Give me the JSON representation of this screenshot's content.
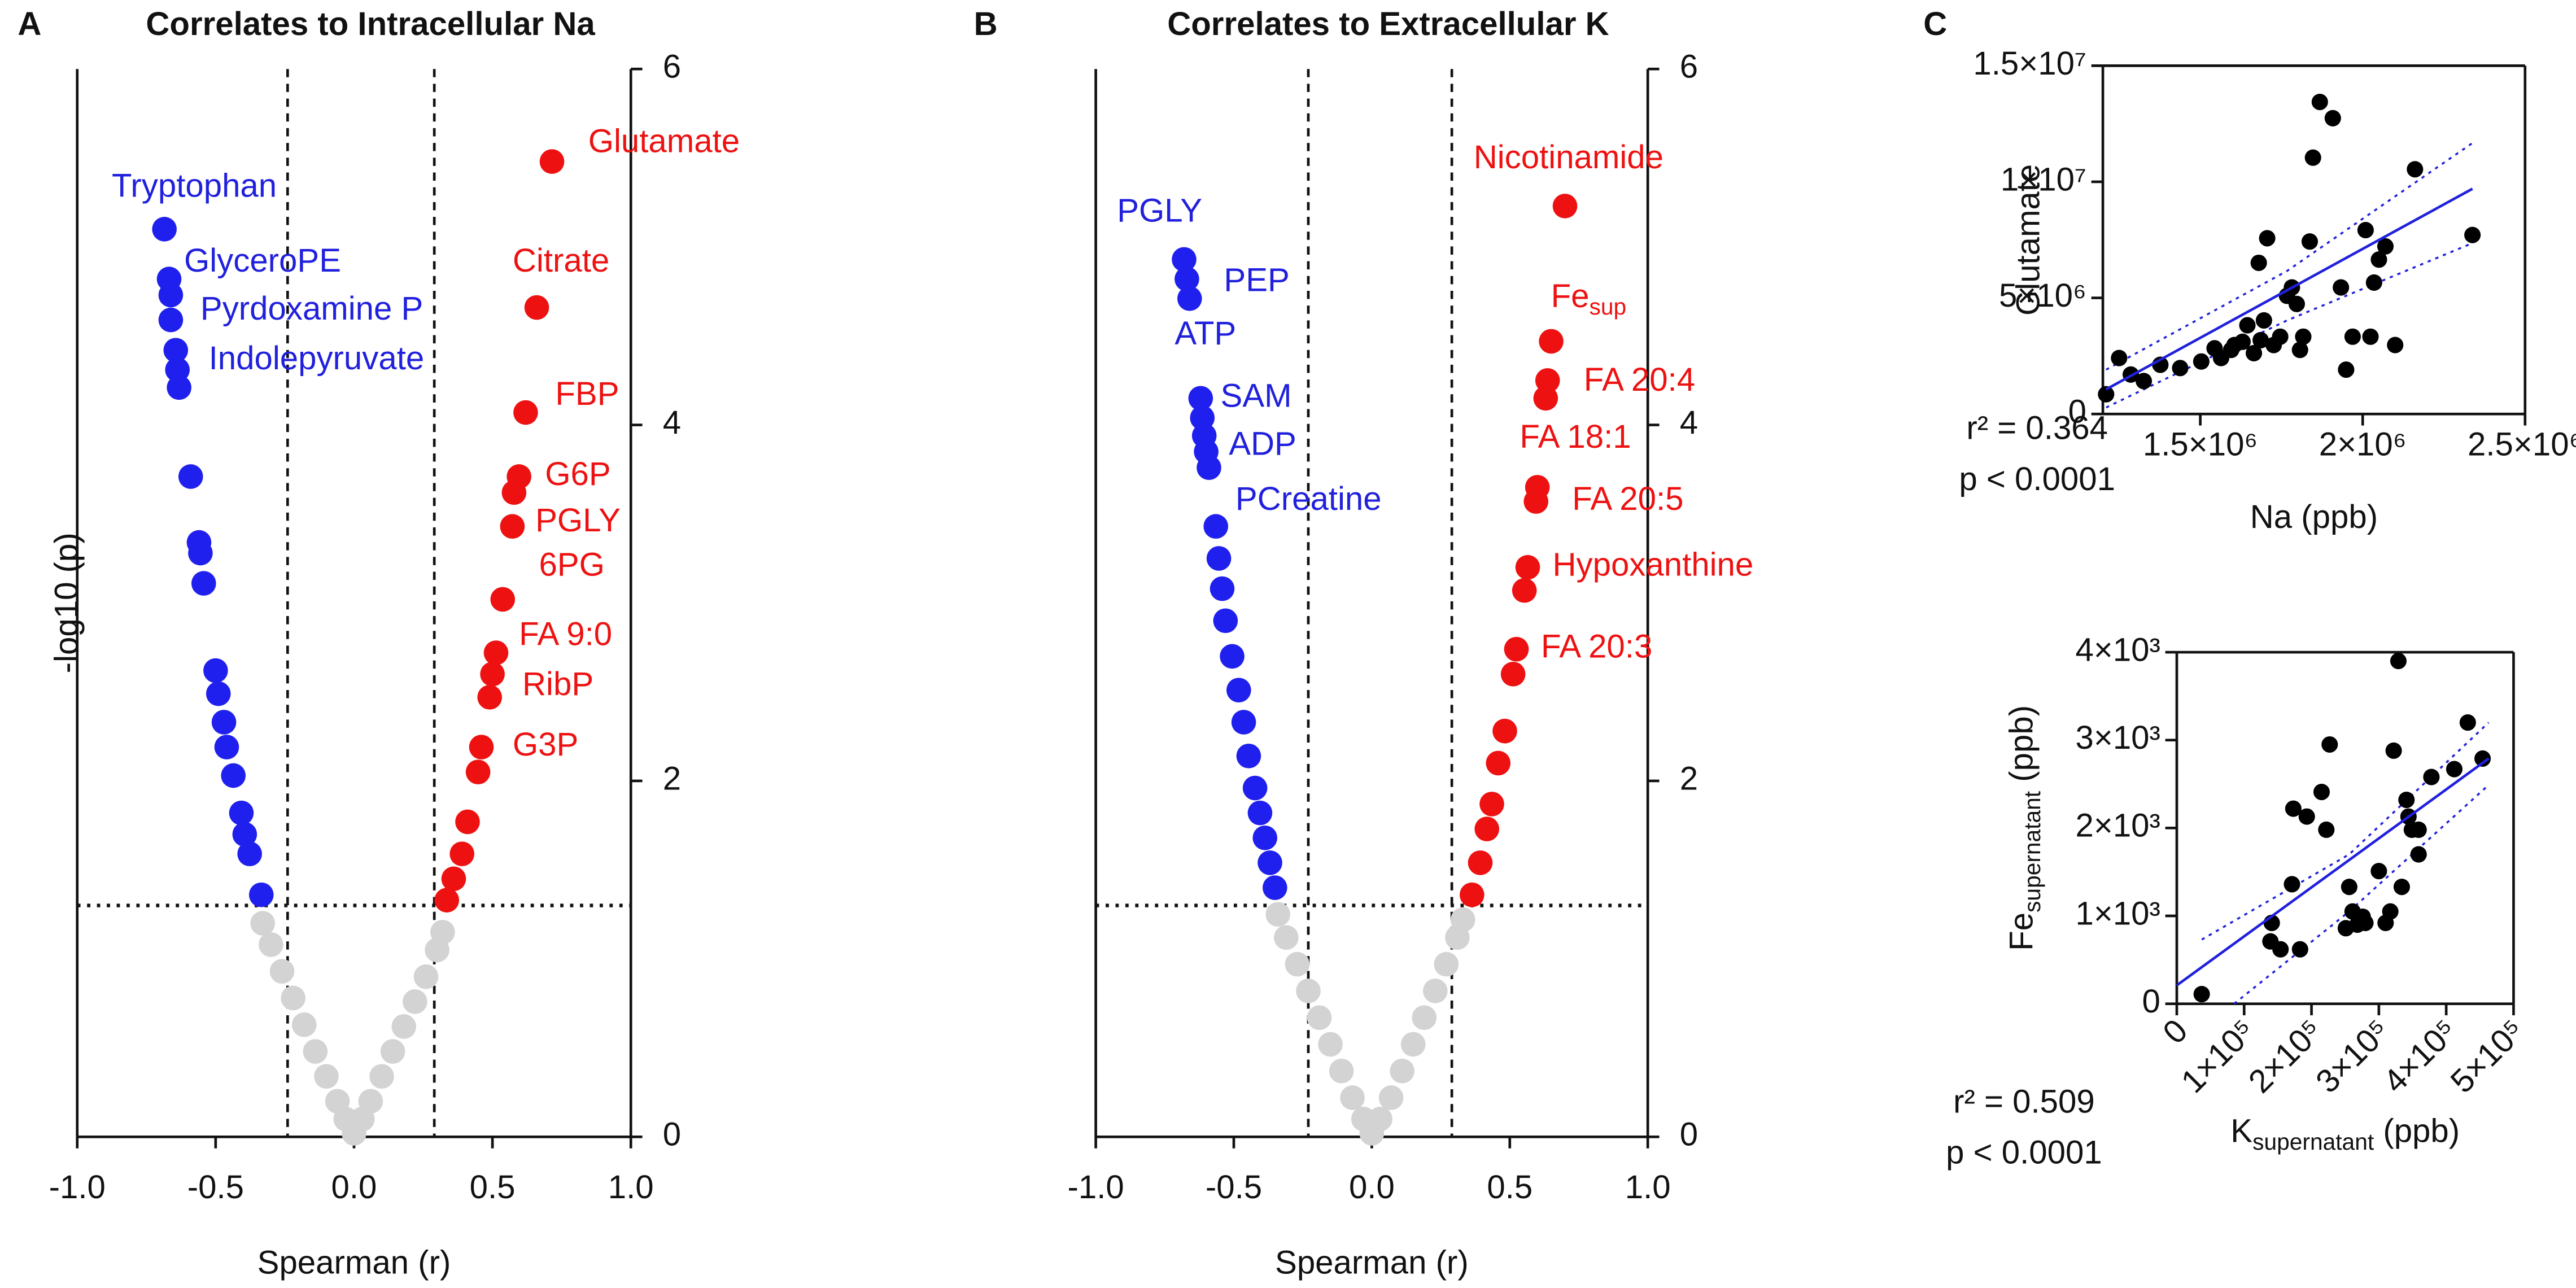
{
  "chart_data": [
    {
      "type": "scatter",
      "panel": "A",
      "title": "Correlates to Intracellular Na",
      "x_label": "Spearman (r)",
      "y_label": "-log10 (p)",
      "xlim": [
        -1,
        1
      ],
      "ylim": [
        0,
        6
      ],
      "xticks": [
        {
          "value": -1,
          "label": "-1.0"
        },
        -0.5,
        {
          "value": 0,
          "label": "0.0"
        },
        0.5,
        {
          "value": 1,
          "label": "1.0"
        }
      ],
      "yticks": [
        0,
        2,
        4,
        6
      ],
      "y_axis_side": "right",
      "frame": "open",
      "thresholds": {
        "x": [
          -0.24,
          0.29
        ],
        "y": [
          1.3
        ]
      },
      "series": [
        {
          "color": "#d3d3d3",
          "x": [
            -0.33,
            -0.3,
            -0.26,
            -0.22,
            -0.18,
            -0.14,
            -0.1,
            -0.06,
            -0.03,
            0,
            0.03,
            0.06,
            0.1,
            0.14,
            0.18,
            0.22,
            0.26,
            0.3,
            0.32
          ],
          "values": [
            1.2,
            1.08,
            0.93,
            0.78,
            0.63,
            0.48,
            0.34,
            0.2,
            0.1,
            0.02,
            0.1,
            0.2,
            0.34,
            0.48,
            0.62,
            0.76,
            0.9,
            1.05,
            1.15
          ]
        },
        {
          "color": "#2020ee",
          "x": [
            -0.685,
            -0.668,
            -0.662,
            -0.662,
            -0.644,
            -0.638,
            -0.632,
            -0.59,
            -0.56,
            -0.555,
            -0.543,
            -0.5,
            -0.49,
            -0.47,
            -0.46,
            -0.436,
            -0.407,
            -0.395,
            -0.377,
            -0.335
          ],
          "values": [
            5.1,
            4.82,
            4.73,
            4.59,
            4.42,
            4.31,
            4.21,
            3.71,
            3.34,
            3.28,
            3.11,
            2.62,
            2.49,
            2.33,
            2.19,
            2.03,
            1.82,
            1.7,
            1.59,
            1.36
          ]
        },
        {
          "color": "#ee1111",
          "x": [
            0.715,
            0.66,
            0.62,
            0.596,
            0.578,
            0.572,
            0.537,
            0.513,
            0.5,
            0.49,
            0.46,
            0.448,
            0.41,
            0.39,
            0.36,
            0.335
          ],
          "values": [
            5.48,
            4.66,
            4.07,
            3.71,
            3.62,
            3.43,
            3.02,
            2.72,
            2.6,
            2.47,
            2.19,
            2.05,
            1.77,
            1.59,
            1.45,
            1.33
          ]
        }
      ],
      "annotations": [
        {
          "text": "Tryptophan",
          "x": -0.875,
          "y": 5.33,
          "color": "#2020dd"
        },
        {
          "text": "GlyceroPE",
          "x": -0.614,
          "y": 4.91,
          "color": "#2020dd"
        },
        {
          "text": "Pyrdoxamine P",
          "x": -0.555,
          "y": 4.64,
          "color": "#2020dd"
        },
        {
          "text": "Indolepyruvate",
          "x": -0.525,
          "y": 4.36,
          "color": "#2020dd"
        },
        {
          "text": "Glutamate",
          "x": 0.846,
          "y": 5.58,
          "color": "#ee1111"
        },
        {
          "text": "Citrate",
          "x": 0.573,
          "y": 4.91,
          "color": "#ee1111"
        },
        {
          "text": "FBP",
          "x": 0.727,
          "y": 4.16,
          "color": "#ee1111"
        },
        {
          "text": "G6P",
          "x": 0.69,
          "y": 3.71,
          "color": "#ee1111"
        },
        {
          "text": "PGLY",
          "x": 0.655,
          "y": 3.45,
          "color": "#ee1111"
        },
        {
          "text": "6PG",
          "x": 0.668,
          "y": 3.2,
          "color": "#ee1111"
        },
        {
          "text": "FA 9:0",
          "x": 0.596,
          "y": 2.81,
          "color": "#ee1111"
        },
        {
          "text": "RibP",
          "x": 0.608,
          "y": 2.53,
          "color": "#ee1111"
        },
        {
          "text": "G3P",
          "x": 0.573,
          "y": 2.19,
          "color": "#ee1111"
        }
      ]
    },
    {
      "type": "scatter",
      "panel": "B",
      "title": "Correlates to Extracellular K",
      "x_label": "Spearman (r)",
      "y_label": "-log10 (p)",
      "xlim": [
        -1,
        1
      ],
      "ylim": [
        0,
        6
      ],
      "xticks": [
        {
          "value": -1,
          "label": "-1.0"
        },
        -0.5,
        {
          "value": 0,
          "label": "0.0"
        },
        0.5,
        {
          "value": 1,
          "label": "1.0"
        }
      ],
      "yticks": [
        0,
        2,
        4,
        6
      ],
      "y_axis_side": "right",
      "frame": "open",
      "thresholds": {
        "x": [
          -0.23,
          0.29
        ],
        "y": [
          1.3
        ]
      },
      "series": [
        {
          "color": "#d3d3d3",
          "x": [
            -0.34,
            -0.31,
            -0.27,
            -0.23,
            -0.19,
            -0.15,
            -0.11,
            -0.07,
            -0.03,
            0,
            0.03,
            0.07,
            0.11,
            0.15,
            0.19,
            0.23,
            0.27,
            0.31,
            0.33
          ],
          "values": [
            1.25,
            1.12,
            0.97,
            0.82,
            0.67,
            0.52,
            0.37,
            0.22,
            0.1,
            0.02,
            0.1,
            0.22,
            0.37,
            0.52,
            0.67,
            0.82,
            0.97,
            1.12,
            1.22
          ]
        },
        {
          "color": "#2020ee",
          "x": [
            -0.68,
            -0.67,
            -0.66,
            -0.62,
            -0.614,
            -0.607,
            -0.6,
            -0.59,
            -0.565,
            -0.554,
            -0.542,
            -0.53,
            -0.506,
            -0.482,
            -0.464,
            -0.446,
            -0.423,
            -0.405,
            -0.387,
            -0.369,
            -0.351
          ],
          "values": [
            4.93,
            4.82,
            4.71,
            4.15,
            4.04,
            3.94,
            3.85,
            3.76,
            3.43,
            3.25,
            3.08,
            2.9,
            2.7,
            2.51,
            2.33,
            2.14,
            1.96,
            1.82,
            1.68,
            1.54,
            1.4
          ]
        },
        {
          "color": "#ee1111",
          "x": [
            0.7,
            0.65,
            0.637,
            0.63,
            0.6,
            0.595,
            0.565,
            0.553,
            0.524,
            0.512,
            0.482,
            0.458,
            0.435,
            0.417,
            0.393,
            0.363
          ],
          "values": [
            5.23,
            4.47,
            4.25,
            4.15,
            3.65,
            3.57,
            3.2,
            3.07,
            2.74,
            2.6,
            2.28,
            2.1,
            1.87,
            1.73,
            1.54,
            1.36
          ]
        }
      ],
      "annotations": [
        {
          "text": "PGLY",
          "x": -0.923,
          "y": 5.19,
          "color": "#2020dd"
        },
        {
          "text": "PEP",
          "x": -0.536,
          "y": 4.8,
          "color": "#2020dd"
        },
        {
          "text": "ATP",
          "x": -0.714,
          "y": 4.5,
          "color": "#2020dd"
        },
        {
          "text": "SAM",
          "x": -0.548,
          "y": 4.15,
          "color": "#2020dd"
        },
        {
          "text": "ADP",
          "x": -0.518,
          "y": 3.88,
          "color": "#2020dd"
        },
        {
          "text": "PCreatine",
          "x": -0.494,
          "y": 3.57,
          "color": "#2020dd"
        },
        {
          "text": "Nicotinamide",
          "x": 0.369,
          "y": 5.49,
          "color": "#ee1111"
        },
        {
          "text": "Fe",
          "sub": "sup",
          "x": 0.649,
          "y": 4.71,
          "color": "#ee1111"
        },
        {
          "text": "FA 20:4",
          "x": 0.768,
          "y": 4.24,
          "color": "#ee1111"
        },
        {
          "text": "FA 18:1",
          "x": 0.536,
          "y": 3.92,
          "color": "#ee1111"
        },
        {
          "text": "FA 20:5",
          "x": 0.726,
          "y": 3.57,
          "color": "#ee1111"
        },
        {
          "text": "Hypoxanthine",
          "x": 0.655,
          "y": 3.2,
          "color": "#ee1111"
        },
        {
          "text": "FA 20:3",
          "x": 0.613,
          "y": 2.74,
          "color": "#ee1111"
        }
      ]
    },
    {
      "type": "scatter",
      "panel": "C",
      "x_label": "Na (ppb)",
      "y_label": "Glutamate",
      "frame": "box",
      "xlim": [
        1200000,
        2500000
      ],
      "ylim": [
        0,
        15000000
      ],
      "xticks": [
        {
          "value": 1500000,
          "label": "1.5×10⁶"
        },
        {
          "value": 2000000,
          "label": "2×10⁶"
        },
        {
          "value": 2500000,
          "label": "2.5×10⁶"
        }
      ],
      "yticks": [
        0,
        {
          "value": 5000000,
          "label": "5×10⁶"
        },
        {
          "value": 10000000,
          "label": "1×10⁷"
        },
        {
          "value": 15000000,
          "label": "1.5×10⁷"
        }
      ],
      "series": [
        {
          "color": "#000000",
          "x": [
            1210000,
            1250000,
            1286000,
            1326000,
            1377000,
            1438000,
            1503000,
            1544000,
            1564000,
            1595000,
            1605000,
            1630000,
            1645000,
            1665000,
            1686000,
            1696000,
            1706000,
            1680000,
            1726000,
            1746000,
            1767000,
            1782000,
            1797000,
            1807000,
            1817000,
            1837000,
            1868000,
            1908000,
            1933000,
            1949000,
            1969000,
            2009000,
            2024000,
            2035000,
            2050000,
            2070000,
            2100000,
            2161000,
            2338000,
            1847000
          ],
          "values": [
            850000,
            2410000,
            1700000,
            1420000,
            2120000,
            1980000,
            2260000,
            2830000,
            2410000,
            2760000,
            2970000,
            3110000,
            3820000,
            2620000,
            3180000,
            4030000,
            7570000,
            6510000,
            2970000,
            3330000,
            5090000,
            5450000,
            4740000,
            2760000,
            3330000,
            7430000,
            13440000,
            12740000,
            5450000,
            1910000,
            3330000,
            7920000,
            3330000,
            5660000,
            6650000,
            7220000,
            2970000,
            10540000,
            7710000,
            11040000
          ]
        }
      ],
      "fit": {
        "color": "#2020dd",
        "x": [
          1210000,
          2338000
        ],
        "y": [
          1060000,
          9700000
        ]
      },
      "bands": [
        {
          "x": [
            1210000,
            1767000,
            2338000
          ],
          "y": [
            1910000,
            6160000,
            11670000
          ]
        },
        {
          "x": [
            1210000,
            1767000,
            2338000
          ],
          "y": [
            280000,
            4030000,
            7360000
          ]
        }
      ],
      "stats": [
        "r² = 0.364",
        "p < 0.0001"
      ]
    },
    {
      "type": "scatter",
      "x_label": {
        "text": "K",
        "sub": "supernatant",
        "suffix": " (ppb)"
      },
      "y_label": {
        "text": "Fe",
        "sub": "supernatant",
        "suffix": " (ppb)"
      },
      "frame": "box",
      "xlim": [
        0,
        500000
      ],
      "ylim": [
        0,
        4000
      ],
      "xtick_rotation": -45,
      "xticks": [
        0,
        {
          "value": 100000,
          "label": "1×10⁵"
        },
        {
          "value": 200000,
          "label": "2×10⁵"
        },
        {
          "value": 300000,
          "label": "3×10⁵"
        },
        {
          "value": 400000,
          "label": "4×10⁵"
        },
        {
          "value": 500000,
          "label": "5×10⁵"
        }
      ],
      "yticks": [
        0,
        {
          "value": 1000,
          "label": "1×10³"
        },
        {
          "value": 2000,
          "label": "2×10³"
        },
        {
          "value": 3000,
          "label": "3×10³"
        },
        {
          "value": 4000,
          "label": "4×10³"
        }
      ],
      "series": [
        {
          "color": "#000000",
          "x": [
            37000,
            141000,
            139000,
            154000,
            171000,
            173000,
            183000,
            193000,
            215000,
            222000,
            227000,
            251000,
            256000,
            261000,
            268000,
            276000,
            280000,
            300000,
            310000,
            317000,
            322000,
            329000,
            341000,
            344000,
            334000,
            349000,
            359000,
            359000,
            378000,
            412000,
            432000,
            454000
          ],
          "values": [
            110,
            920,
            710,
            620,
            1360,
            2220,
            620,
            2130,
            2410,
            1980,
            2950,
            860,
            1330,
            1050,
            900,
            990,
            920,
            1510,
            920,
            1050,
            2880,
            3900,
            2320,
            2130,
            1330,
            1980,
            1980,
            1700,
            2580,
            2670,
            3200,
            2790
          ]
        }
      ],
      "fit": {
        "color": "#2020dd",
        "x": [
          0,
          463000
        ],
        "y": [
          210,
          2790
        ]
      },
      "bands": [
        {
          "x": [
            37000,
            256000,
            463000
          ],
          "y": [
            730,
            1700,
            3200
          ]
        },
        {
          "x": [
            85000,
            256000,
            463000
          ],
          "y": [
            0,
            1050,
            2490
          ]
        }
      ],
      "stats": [
        "r² = 0.509",
        "p < 0.0001"
      ]
    }
  ]
}
